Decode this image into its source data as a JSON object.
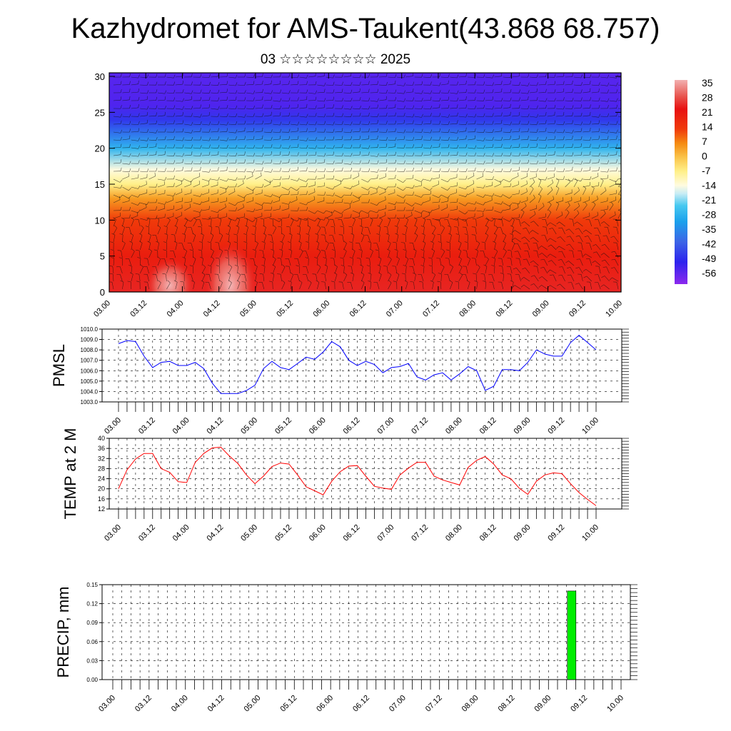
{
  "title": "Kazhydromet for AMS-Taukent(43.868 68.757)",
  "subtitle": "03 ☆☆☆☆☆☆☆☆ 2025",
  "chart_data": [
    {
      "id": "cross-section",
      "type": "heatmap",
      "title": "",
      "xlabel": "",
      "ylabel": "",
      "x_tick_labels": [
        "03.00",
        "03.12",
        "04.00",
        "04.12",
        "05.00",
        "05.12",
        "06.00",
        "06.12",
        "07.00",
        "07.12",
        "08.00",
        "08.12",
        "09.00",
        "09.12",
        "10.00"
      ],
      "y_ticks": [
        0,
        5,
        10,
        15,
        20,
        25,
        30
      ],
      "ylim": [
        0,
        30.5
      ],
      "values_by_height": [
        {
          "y": 0,
          "value": 26
        },
        {
          "y": 5,
          "value": 21
        },
        {
          "y": 10,
          "value": 14
        },
        {
          "y": 13,
          "value": 5
        },
        {
          "y": 15,
          "value": -7
        },
        {
          "y": 17,
          "value": -14
        },
        {
          "y": 20,
          "value": -28
        },
        {
          "y": 24,
          "value": -49
        },
        {
          "y": 26,
          "value": -56
        },
        {
          "y": 30.5,
          "value": -57
        }
      ],
      "overlay": "wind barbs",
      "colorbar": {
        "labels": [
          "35",
          "28",
          "21",
          "14",
          "7",
          "0",
          "-7",
          "-14",
          "-21",
          "-28",
          "-35",
          "-42",
          "-49",
          "-56"
        ],
        "min": -63,
        "max": 38.5,
        "stops": [
          {
            "value": 38.5,
            "color": "#f2b0b0"
          },
          {
            "value": 30,
            "color": "#e8504a"
          },
          {
            "value": 24,
            "color": "#e81010"
          },
          {
            "value": 14,
            "color": "#f03a0a"
          },
          {
            "value": 7,
            "color": "#f58a10"
          },
          {
            "value": 0,
            "color": "#fac44a"
          },
          {
            "value": -7,
            "color": "#fff08a"
          },
          {
            "value": -14,
            "color": "#fffbe0"
          },
          {
            "value": -18,
            "color": "#c8ecf5"
          },
          {
            "value": -24,
            "color": "#46c8f0"
          },
          {
            "value": -32,
            "color": "#1aa0ec"
          },
          {
            "value": -42,
            "color": "#3c64e6"
          },
          {
            "value": -52,
            "color": "#2c22ee"
          },
          {
            "value": -63,
            "color": "#8c28ee"
          }
        ]
      }
    },
    {
      "id": "pmsl",
      "type": "line",
      "title": "",
      "xlabel": "",
      "ylabel": "PMSL",
      "ylim": [
        1003,
        1010
      ],
      "y_ticks": [
        "1010.0",
        "1009.0",
        "1008.0",
        "1007.0",
        "1006.0",
        "1005.0",
        "1004.0",
        "1003.0"
      ],
      "x_tick_labels": [
        "03.00",
        "03.12",
        "04.00",
        "04.12",
        "05.00",
        "05.12",
        "06.00",
        "06.12",
        "07.00",
        "07.12",
        "08.00",
        "08.12",
        "09.00",
        "09.12",
        "10.00"
      ],
      "color": "#0000ff",
      "series": [
        {
          "name": "",
          "values": [
            1008.6,
            1008.9,
            1008.8,
            1007.4,
            1006.3,
            1006.8,
            1006.9,
            1006.5,
            1006.5,
            1006.8,
            1006.2,
            1004.8,
            1003.8,
            1003.8,
            1003.8,
            1004.1,
            1004.6,
            1006.2,
            1006.9,
            1006.3,
            1006.1,
            1006.7,
            1007.3,
            1007.1,
            1007.8,
            1008.8,
            1008.3,
            1007.0,
            1006.5,
            1006.9,
            1006.6,
            1005.8,
            1006.3,
            1006.4,
            1006.7,
            1005.4,
            1005.1,
            1005.6,
            1005.8,
            1005.1,
            1005.7,
            1006.4,
            1006.0,
            1004.1,
            1004.5,
            1006.1,
            1006.1,
            1006.0,
            1006.8,
            1008.0,
            1007.6,
            1007.4,
            1007.4,
            1008.7,
            1009.4,
            1008.7,
            1008.0
          ]
        }
      ]
    },
    {
      "id": "temp",
      "type": "line",
      "title": "",
      "xlabel": "",
      "ylabel": "TEMP at 2 M",
      "ylim": [
        12,
        40
      ],
      "y_ticks": [
        "40",
        "36",
        "32",
        "28",
        "24",
        "20",
        "16",
        "12"
      ],
      "x_tick_labels": [
        "03.00",
        "03.12",
        "04.00",
        "04.12",
        "05.00",
        "05.12",
        "06.00",
        "06.12",
        "07.00",
        "07.12",
        "08.00",
        "08.12",
        "09.00",
        "09.12",
        "10.00"
      ],
      "color": "#ff0000",
      "series": [
        {
          "name": "",
          "values": [
            20.0,
            27.5,
            31.8,
            34.0,
            34.0,
            28.0,
            26.5,
            22.8,
            22.5,
            30.5,
            34.0,
            36.2,
            36.5,
            33.0,
            30.0,
            25.5,
            22.0,
            25.0,
            28.8,
            30.2,
            29.8,
            25.5,
            20.8,
            19.2,
            17.6,
            23.0,
            26.8,
            29.0,
            29.2,
            25.0,
            21.0,
            20.3,
            19.8,
            25.5,
            28.2,
            30.5,
            30.5,
            25.0,
            23.5,
            22.5,
            21.5,
            28.5,
            31.3,
            32.8,
            29.8,
            25.5,
            24.0,
            20.2,
            17.8,
            23.0,
            25.5,
            26.3,
            26.0,
            22.0,
            18.5,
            15.8,
            13.3
          ]
        }
      ]
    },
    {
      "id": "precip",
      "type": "bar",
      "title": "",
      "xlabel": "",
      "ylabel": "PRECIP, mm",
      "ylim": [
        0,
        0.15
      ],
      "y_ticks": [
        "0.15",
        "0.12",
        "0.09",
        "0.06",
        "0.03",
        "0.00"
      ],
      "x_tick_labels": [
        "03.00",
        "03.12",
        "04.00",
        "04.12",
        "05.00",
        "05.12",
        "06.00",
        "06.12",
        "07.00",
        "07.12",
        "08.00",
        "08.12",
        "09.00",
        "09.12",
        "10.00"
      ],
      "color": "#00ee00",
      "bars": [
        {
          "x_day": 9.32,
          "value": 0.14
        }
      ]
    }
  ]
}
